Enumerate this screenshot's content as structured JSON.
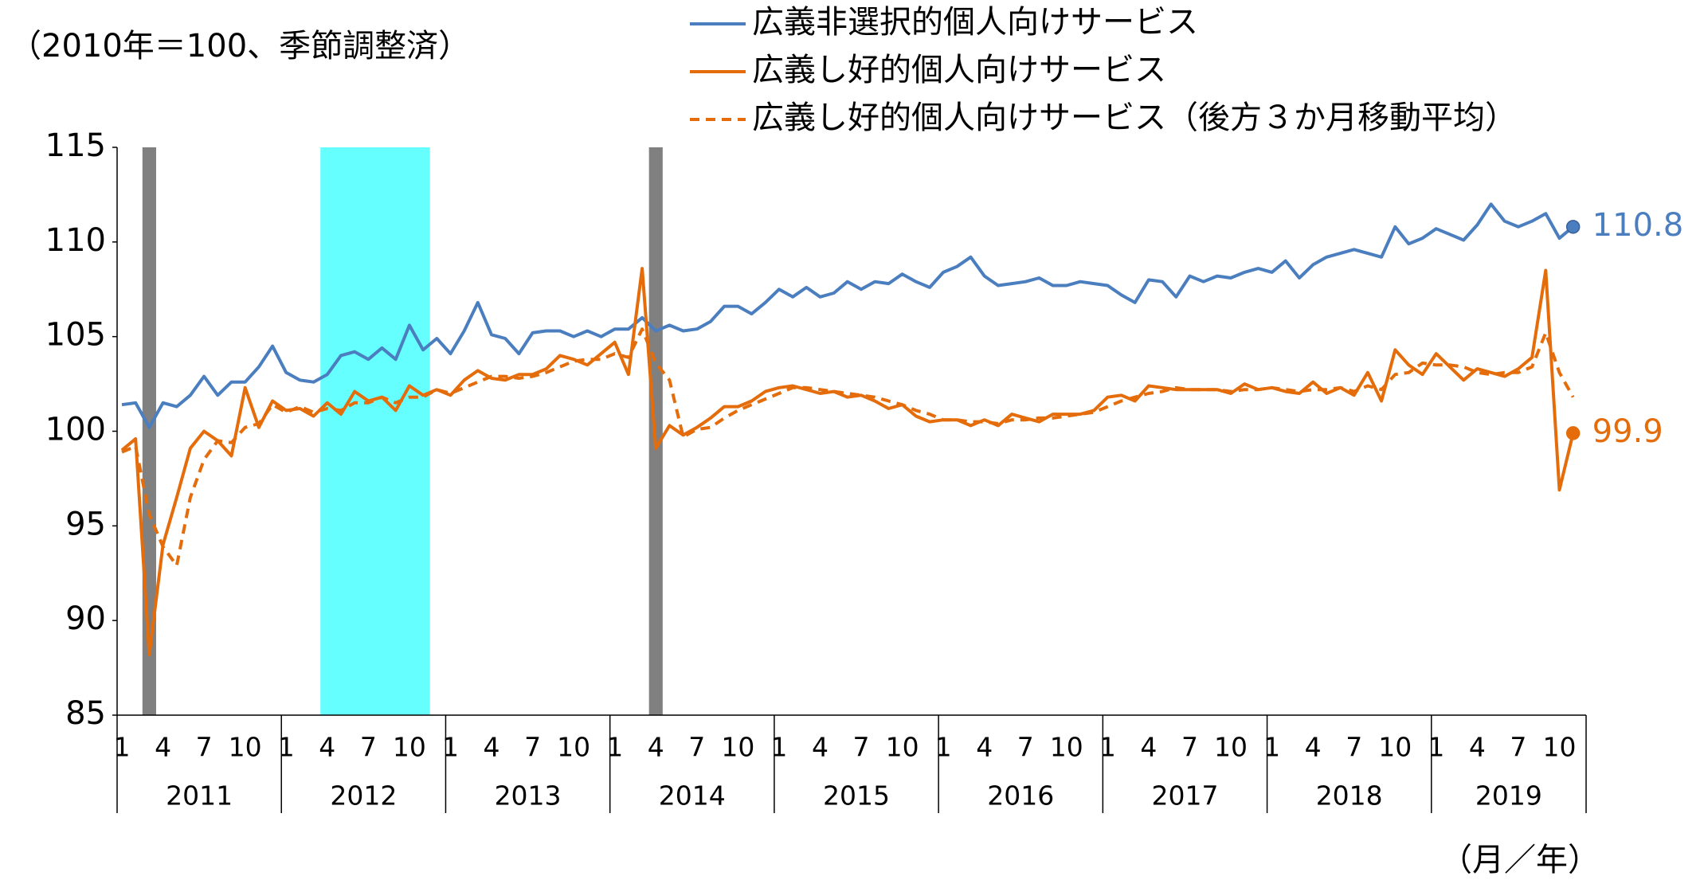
{
  "chart_data": {
    "type": "line",
    "title": "（2010年＝100、季節調整済）",
    "x_unit_label": "（月／年）",
    "categories": [
      "1",
      null,
      null,
      "4",
      null,
      null,
      "7",
      null,
      null,
      "10",
      null,
      null,
      "1",
      null,
      null,
      "4",
      null,
      null,
      "7",
      null,
      null,
      "10",
      null,
      null,
      "1",
      null,
      null,
      "4",
      null,
      null,
      "7",
      null,
      null,
      "10",
      null,
      null,
      "1",
      null,
      null,
      "4",
      null,
      null,
      "7",
      null,
      null,
      "10",
      null,
      null,
      "1",
      null,
      null,
      "4",
      null,
      null,
      "7",
      null,
      null,
      "10",
      null,
      null,
      "1",
      null,
      null,
      "4",
      null,
      null,
      "7",
      null,
      null,
      "10",
      null,
      null,
      "1",
      null,
      null,
      "4",
      null,
      null,
      "7",
      null,
      null,
      "10",
      null,
      null,
      "1",
      null,
      null,
      "4",
      null,
      null,
      "7",
      null,
      null,
      "10",
      null,
      null,
      "1",
      null,
      null,
      "4",
      null,
      null,
      "7",
      null,
      null,
      "10",
      null
    ],
    "years": [
      "2011",
      "2012",
      "2013",
      "2014",
      "2015",
      "2016",
      "2017",
      "2018",
      "2019"
    ],
    "highlights": [
      {
        "start": 2,
        "end": 2,
        "color": "#808080"
      },
      {
        "start": 15,
        "end": 22,
        "color": "#66ffff"
      },
      {
        "start": 39,
        "end": 39,
        "color": "#808080"
      }
    ],
    "ylim": [
      85,
      115
    ],
    "yticks": [
      85,
      90,
      95,
      100,
      105,
      110,
      115
    ],
    "grid": false,
    "series": [
      {
        "name": "広義非選択的個人向けサービス",
        "color": "#4a7ebf",
        "dash": false,
        "marker_last": true,
        "values": [
          101.4,
          101.5,
          100.2,
          101.5,
          101.3,
          101.9,
          102.9,
          101.9,
          102.6,
          102.6,
          103.4,
          104.5,
          103.1,
          102.7,
          102.6,
          103.0,
          104.0,
          104.2,
          103.8,
          104.4,
          103.8,
          105.6,
          104.3,
          104.9,
          104.1,
          105.3,
          106.8,
          105.1,
          104.9,
          104.1,
          105.2,
          105.3,
          105.3,
          105.0,
          105.3,
          105.0,
          105.4,
          105.4,
          106.0,
          105.3,
          105.6,
          105.3,
          105.4,
          105.8,
          106.6,
          106.6,
          106.2,
          106.8,
          107.5,
          107.1,
          107.6,
          107.1,
          107.3,
          107.9,
          107.5,
          107.9,
          107.8,
          108.3,
          107.9,
          107.6,
          108.4,
          108.7,
          109.2,
          108.2,
          107.7,
          107.8,
          107.9,
          108.1,
          107.7,
          107.7,
          107.9,
          107.8,
          107.7,
          107.2,
          106.8,
          108.0,
          107.9,
          107.1,
          108.2,
          107.9,
          108.2,
          108.1,
          108.4,
          108.6,
          108.4,
          109.0,
          108.1,
          108.8,
          109.2,
          109.4,
          109.6,
          109.4,
          109.2,
          110.8,
          109.9,
          110.2,
          110.7,
          110.4,
          110.1,
          110.9,
          112.0,
          111.1,
          110.8,
          111.1,
          111.5,
          110.2,
          110.8
        ]
      },
      {
        "name": "広義し好的個人向けサービス",
        "color": "#e46c0a",
        "dash": false,
        "marker_last": true,
        "values": [
          99.0,
          99.6,
          88.2,
          94.0,
          96.5,
          99.1,
          100.0,
          99.5,
          98.7,
          102.3,
          100.2,
          101.6,
          101.1,
          101.2,
          100.8,
          101.5,
          100.9,
          102.1,
          101.6,
          101.8,
          101.1,
          102.4,
          101.9,
          102.2,
          101.9,
          102.7,
          103.2,
          102.8,
          102.7,
          103.0,
          103.0,
          103.3,
          104.0,
          103.8,
          103.5,
          104.1,
          104.7,
          103.0,
          108.6,
          99.1,
          100.3,
          99.8,
          100.2,
          100.7,
          101.3,
          101.3,
          101.6,
          102.1,
          102.3,
          102.4,
          102.2,
          102.0,
          102.1,
          101.8,
          101.9,
          101.6,
          101.2,
          101.4,
          100.8,
          100.5,
          100.6,
          100.6,
          100.3,
          100.6,
          100.3,
          100.9,
          100.7,
          100.5,
          100.9,
          100.9,
          100.9,
          101.1,
          101.8,
          101.9,
          101.6,
          102.4,
          102.3,
          102.2,
          102.2,
          102.2,
          102.2,
          102.0,
          102.5,
          102.2,
          102.3,
          102.1,
          102.0,
          102.6,
          102.0,
          102.3,
          101.9,
          103.1,
          101.6,
          104.3,
          103.5,
          103.0,
          104.1,
          103.4,
          102.7,
          103.3,
          103.1,
          102.9,
          103.3,
          103.9,
          108.5,
          96.9,
          99.9
        ]
      },
      {
        "name": "広義し好的個人向けサービス（後方３か月移動平均）",
        "color": "#e46c0a",
        "dash": true,
        "marker_last": false,
        "values": [
          98.9,
          99.2,
          95.6,
          93.9,
          92.9,
          96.5,
          98.5,
          99.5,
          99.4,
          100.2,
          100.4,
          101.4,
          101.0,
          101.3,
          101.0,
          101.2,
          101.1,
          101.5,
          101.5,
          101.8,
          101.5,
          101.8,
          101.8,
          102.2,
          102.0,
          102.3,
          102.6,
          102.9,
          102.9,
          102.8,
          102.9,
          103.1,
          103.4,
          103.7,
          103.8,
          103.8,
          104.1,
          103.9,
          105.4,
          103.6,
          102.7,
          99.7,
          100.1,
          100.2,
          100.7,
          101.1,
          101.4,
          101.7,
          102.0,
          102.3,
          102.3,
          102.2,
          102.1,
          102.0,
          101.9,
          101.8,
          101.6,
          101.4,
          101.1,
          100.9,
          100.6,
          100.6,
          100.5,
          100.5,
          100.4,
          100.6,
          100.6,
          100.7,
          100.7,
          100.8,
          100.9,
          101.0,
          101.3,
          101.6,
          101.8,
          102.0,
          102.1,
          102.3,
          102.2,
          102.2,
          102.2,
          102.1,
          102.2,
          102.2,
          102.3,
          102.2,
          102.1,
          102.2,
          102.2,
          102.3,
          102.1,
          102.4,
          102.2,
          103.0,
          103.1,
          103.6,
          103.5,
          103.5,
          103.4,
          103.1,
          103.0,
          103.1,
          103.1,
          103.4,
          105.2,
          103.1,
          101.8
        ]
      }
    ]
  }
}
